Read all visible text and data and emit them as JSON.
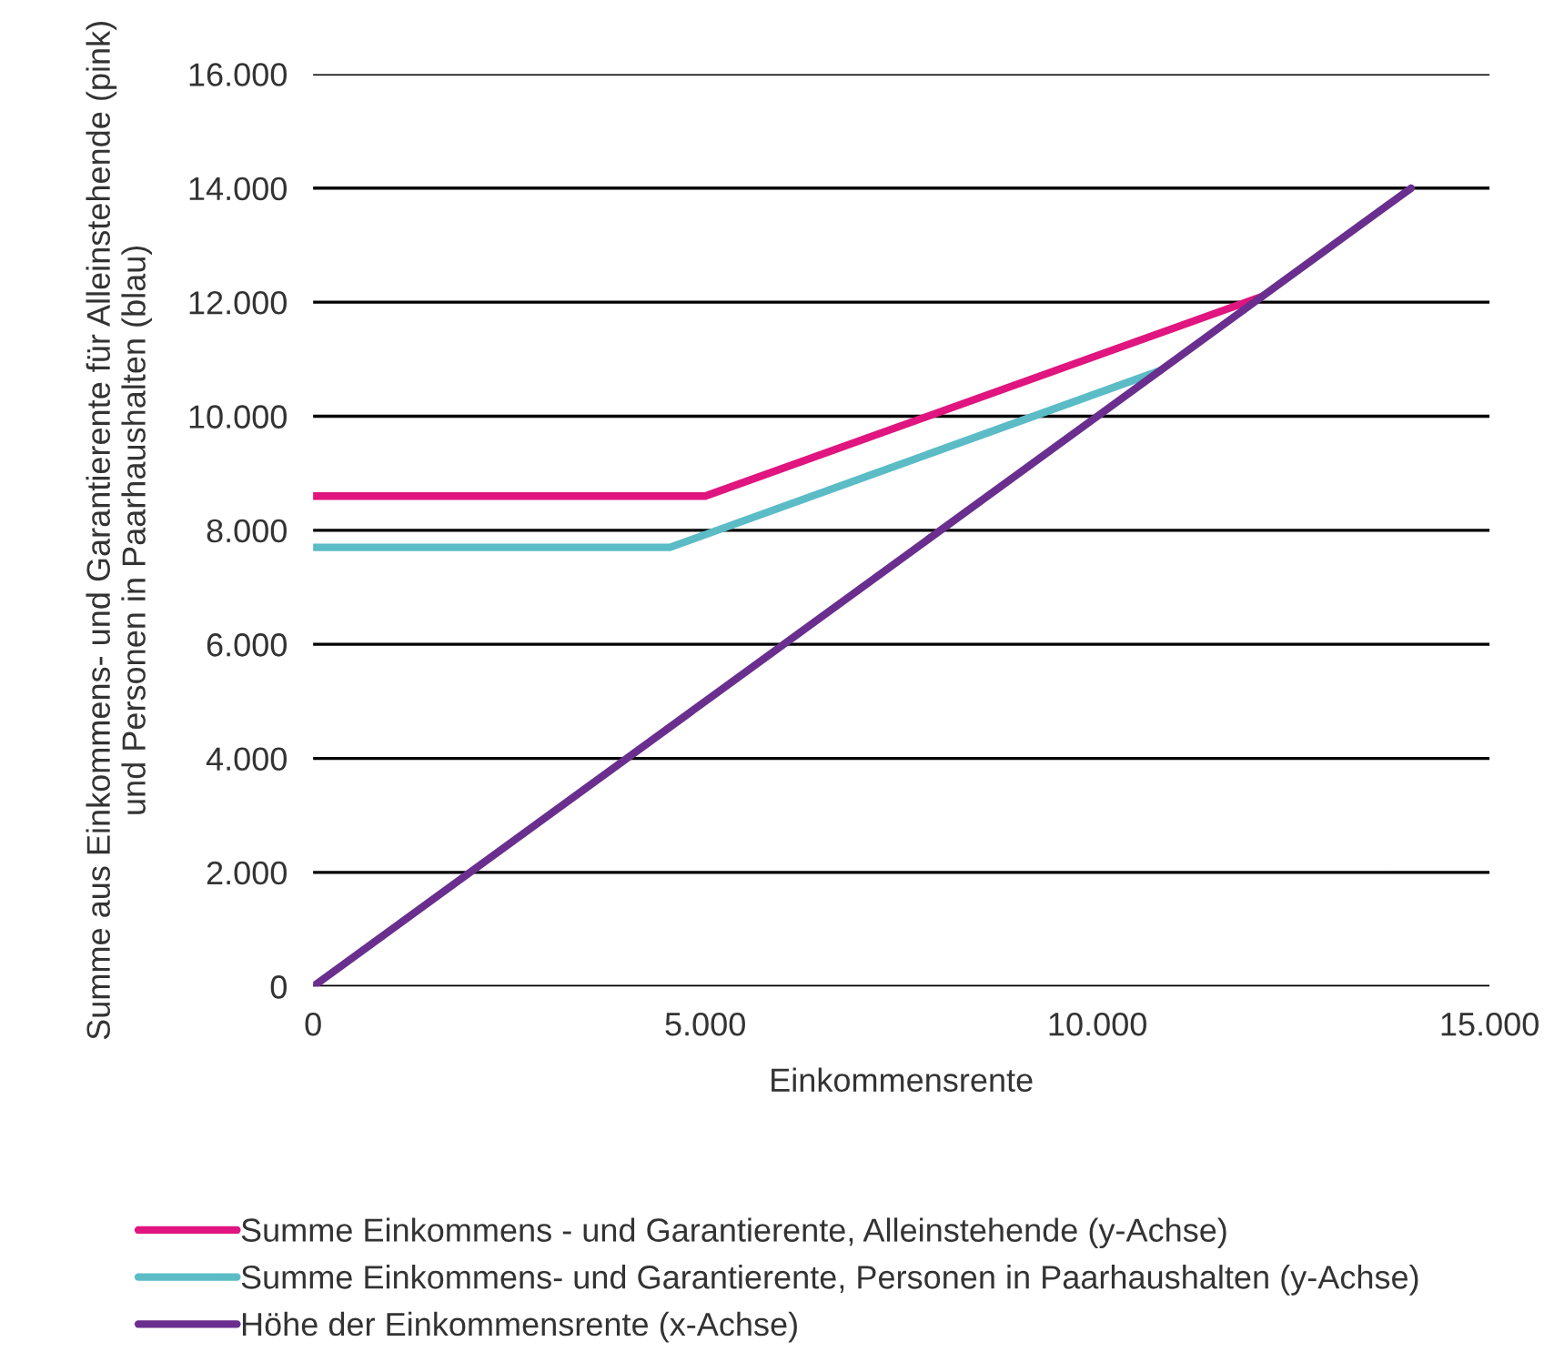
{
  "chart_data": {
    "type": "line",
    "xlabel": "Einkommensrente",
    "ylabel": "Summe aus Einkommens- und Garantierente für Alleinstehende (pink)\nund Personen in Paarhaushalten (blau)",
    "series": [
      {
        "name": "Summe Einkommens - und Garantierente, Alleinstehende (y-Achse)",
        "color": "#e0157f",
        "x": [
          0,
          5000,
          12100
        ],
        "values": [
          8600,
          8600,
          12100
        ]
      },
      {
        "name": "Summe Einkommens- und Garantierente, Personen in Paarhaushalten (y-Achse)",
        "color": "#5bbcc6",
        "x": [
          0,
          4550,
          10800
        ],
        "values": [
          7700,
          7700,
          10800
        ]
      },
      {
        "name": "Höhe der Einkommensrente (x-Achse)",
        "color": "#6a2f8e",
        "x": [
          0,
          14000
        ],
        "values": [
          0,
          14000
        ]
      }
    ],
    "xlim": [
      0,
      15000
    ],
    "ylim": [
      0,
      16000
    ],
    "xticks": [
      0,
      {
        "value": 5000,
        "label": "5.000"
      },
      {
        "value": 10000,
        "label": "10.000"
      },
      {
        "value": 15000,
        "label": "15.000"
      }
    ],
    "yticks": [
      0,
      {
        "value": 2000,
        "label": "2.000"
      },
      {
        "value": 4000,
        "label": "4.000"
      },
      {
        "value": 6000,
        "label": "6.000"
      },
      {
        "value": 8000,
        "label": "8.000"
      },
      {
        "value": 10000,
        "label": "10.000"
      },
      {
        "value": 12000,
        "label": "12.000"
      },
      {
        "value": 14000,
        "label": "14.000"
      },
      {
        "value": 16000,
        "label": "16.000"
      }
    ],
    "grid": "y",
    "legend": "bottom",
    "marker": "none",
    "line_style": "solid"
  }
}
